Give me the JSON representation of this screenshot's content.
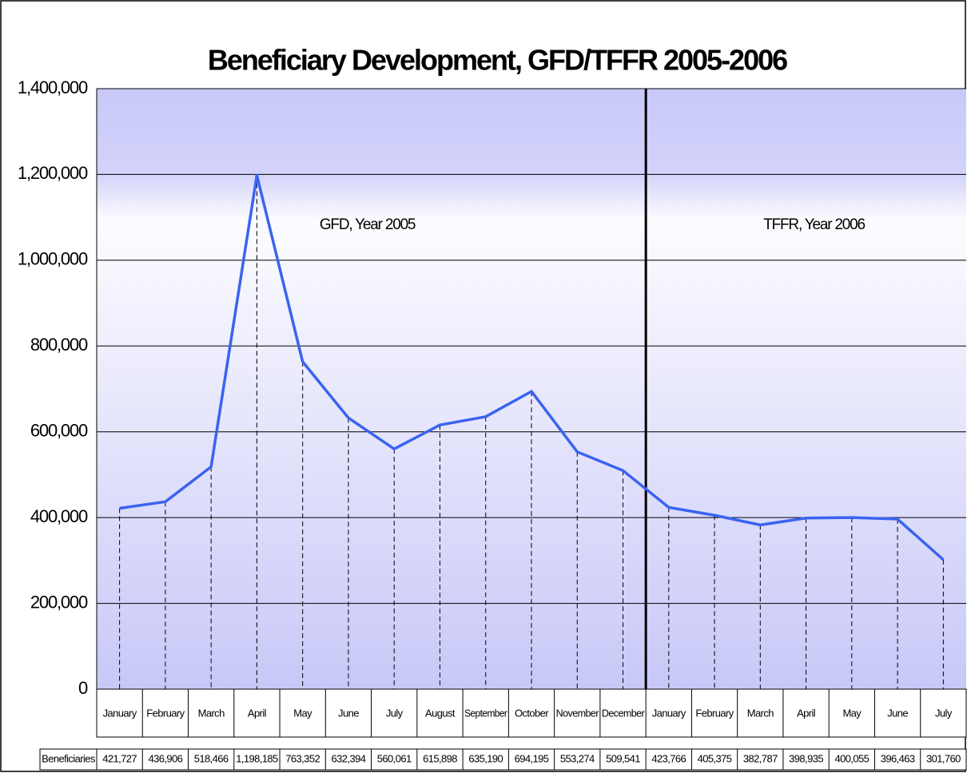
{
  "chart_data": {
    "type": "line",
    "title": "Beneficiary Development, GFD/TFFR 2005-2006",
    "annotations": [
      "GFD, Year 2005",
      "TFFR, Year 2006"
    ],
    "categories": [
      "January",
      "February",
      "March",
      "April",
      "May",
      "June",
      "July",
      "August",
      "September",
      "October",
      "November",
      "December",
      "January",
      "February",
      "March",
      "April",
      "May",
      "June",
      "July"
    ],
    "series": [
      {
        "name": "Beneficiaries",
        "color": "#3b63f0",
        "values": [
          421727,
          436906,
          518466,
          1198185,
          763352,
          632394,
          560061,
          615898,
          635190,
          694195,
          553274,
          509541,
          423766,
          405375,
          382787,
          398935,
          400055,
          396463,
          301760
        ],
        "value_labels": [
          "421,727",
          "436,906",
          "518,466",
          "1,198,185",
          "763,352",
          "632,394",
          "560,061",
          "615,898",
          "635,190",
          "694,195",
          "553,274",
          "509,541",
          "423,766",
          "405,375",
          "382,787",
          "398,935",
          "400,055",
          "396,463",
          "301,760"
        ]
      }
    ],
    "ylim": [
      0,
      1400000
    ],
    "yticks": [
      0,
      {
        "value": 200000,
        "label": "200,000"
      },
      {
        "value": 400000,
        "label": "400,000"
      },
      {
        "value": 600000,
        "label": "600,000"
      },
      {
        "value": 800000,
        "label": "800,000"
      },
      {
        "value": 1000000,
        "label": "1,000,000"
      },
      {
        "value": 1200000,
        "label": "1,200,000"
      },
      {
        "value": 1400000,
        "label": "1,400,000"
      }
    ],
    "grid": true
  }
}
